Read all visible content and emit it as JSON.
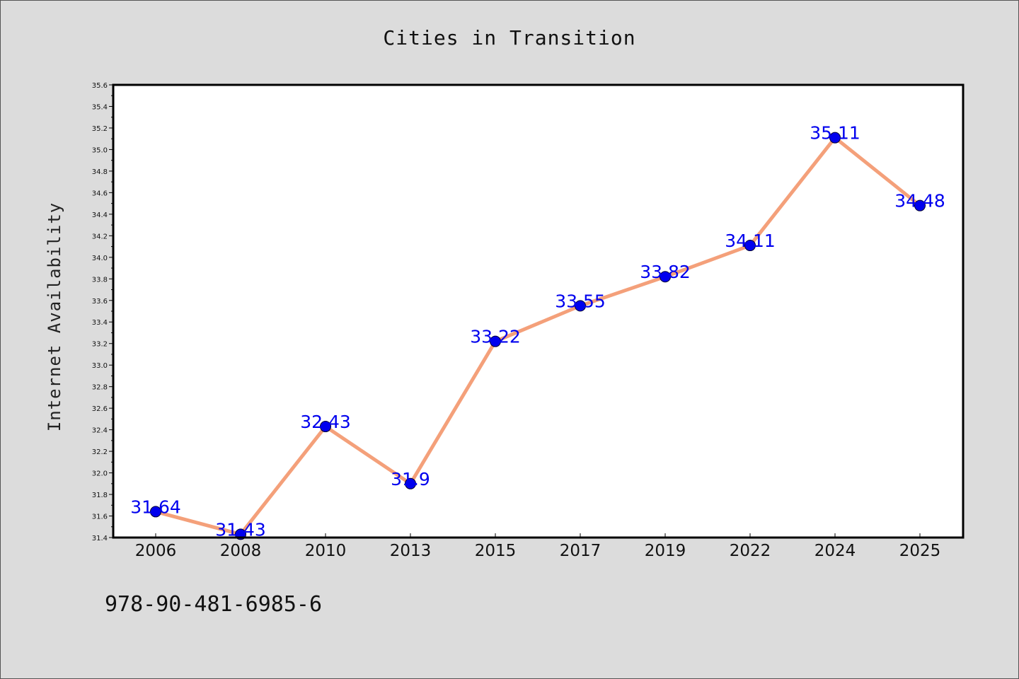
{
  "page": {
    "background": "#dcdcdc",
    "footer_code": "978-90-481-6985-6"
  },
  "chart_data": {
    "type": "line",
    "title": "Cities in Transition",
    "xlabel": "",
    "ylabel": "Internet Availability",
    "categories": [
      "2006",
      "2008",
      "2010",
      "2013",
      "2015",
      "2017",
      "2019",
      "2022",
      "2024",
      "2025"
    ],
    "series": [
      {
        "values": [
          31.64,
          31.43,
          32.43,
          31.9,
          33.22,
          33.55,
          33.82,
          34.11,
          35.11,
          34.48
        ],
        "data_labels": [
          "31.64",
          "31.43",
          "32.43",
          "31.9",
          "33.22",
          "33.55",
          "33.82",
          "34.11",
          "35.11",
          "34.48"
        ],
        "line_color": "#f4a07a",
        "marker_color": "#0000ee",
        "label_color": "#0000ee"
      }
    ],
    "ylim": [
      31.4,
      35.6
    ],
    "y_major_ticks": [
      "31.4",
      "31.6",
      "31.8",
      "32.0",
      "32.2",
      "32.4",
      "32.6",
      "32.8",
      "33.0",
      "33.2",
      "33.4",
      "33.6",
      "33.8",
      "34.0",
      "34.2",
      "34.4",
      "34.6",
      "34.8",
      "35.0",
      "35.2",
      "35.4",
      "35.6"
    ],
    "grid": false,
    "legend": "none",
    "plot_background": "#ffffff"
  }
}
